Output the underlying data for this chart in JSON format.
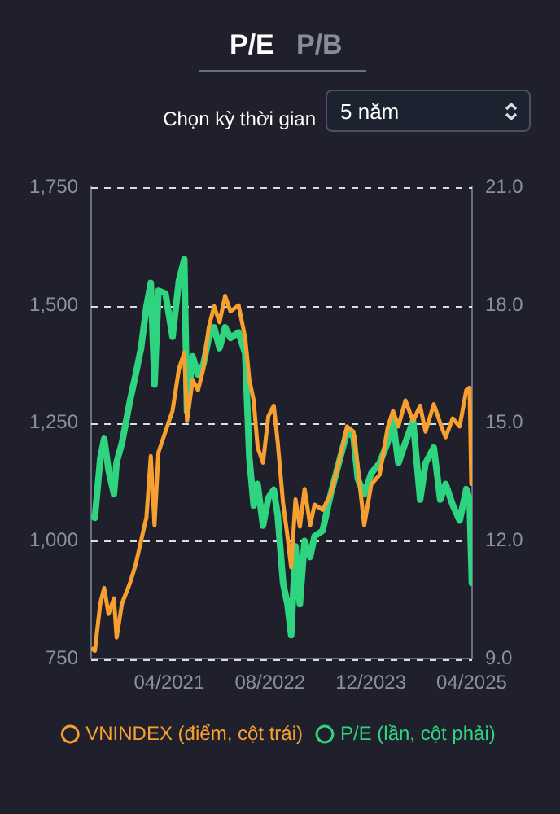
{
  "chart_data": {
    "type": "line",
    "annotations": [
      "P/E",
      "P/B",
      "Chọn kỳ thời gian",
      "5 năm"
    ],
    "x": [
      "2020-03-20",
      "2020-04-07",
      "2020-05-03",
      "2020-05-22",
      "2020-06-12",
      "2020-07-08",
      "2020-07-21",
      "2020-08-16",
      "2020-09-24",
      "2020-10-21",
      "2020-11-16",
      "2020-12-12",
      "2021-01-02",
      "2021-01-20",
      "2021-02-08",
      "2021-03-14",
      "2021-04-17",
      "2021-05-18",
      "2021-06-13",
      "2021-06-26",
      "2021-07-23",
      "2021-08-18",
      "2021-09-13",
      "2021-10-09",
      "2021-11-04",
      "2021-11-30",
      "2021-12-27",
      "2022-01-22",
      "2022-03-02",
      "2022-04-03",
      "2022-04-23",
      "2022-05-14",
      "2022-06-02",
      "2022-06-28",
      "2022-07-24",
      "2022-08-19",
      "2022-09-07",
      "2022-10-03",
      "2022-10-24",
      "2022-11-11",
      "2022-12-02",
      "2022-12-23",
      "2023-01-15",
      "2023-02-11",
      "2023-03-04",
      "2023-04-12",
      "2023-05-21",
      "2023-06-29",
      "2023-08-08",
      "2023-09-08",
      "2023-09-29",
      "2023-10-30",
      "2023-12-03",
      "2024-01-12",
      "2024-02-20",
      "2024-03-17",
      "2024-04-12",
      "2024-05-16",
      "2024-06-22",
      "2024-07-26",
      "2024-08-21",
      "2024-09-30",
      "2024-10-31",
      "2024-11-26",
      "2024-12-30",
      "2025-02-02",
      "2025-03-06",
      "2025-03-22",
      "2025-03-30",
      "2025-04-02"
    ],
    "series": [
      {
        "name": "VNINDEX (điểm, cột trái)",
        "color": "#f7a02f",
        "values": [
          772,
          767,
          867,
          900,
          845,
          878,
          795,
          867,
          911,
          950,
          1000,
          1050,
          1180,
          1033,
          1188,
          1232,
          1276,
          1365,
          1400,
          1254,
          1342,
          1320,
          1365,
          1453,
          1498,
          1464,
          1520,
          1487,
          1500,
          1431,
          1342,
          1298,
          1199,
          1166,
          1265,
          1287,
          1210,
          1080,
          1011,
          944,
          1088,
          1030,
          1110,
          1033,
          1077,
          1066,
          1099,
          1166,
          1243,
          1232,
          1155,
          1033,
          1120,
          1140,
          1240,
          1276,
          1243,
          1298,
          1254,
          1287,
          1232,
          1290,
          1250,
          1220,
          1260,
          1243,
          1320,
          1325,
          1121,
          1221
        ]
      },
      {
        "name": "P/E (lần, cột phải)",
        "color": "#2ed47f",
        "axis": "y2",
        "values": [
          12.65,
          12.59,
          14.1,
          14.6,
          13.8,
          13.19,
          14.0,
          14.5,
          15.58,
          16.24,
          16.91,
          17.97,
          18.57,
          15.98,
          18.37,
          18.3,
          17.2,
          18.63,
          19.17,
          15.31,
          16.7,
          16.24,
          16.5,
          17.17,
          17.44,
          16.91,
          17.44,
          17.17,
          17.31,
          16.77,
          14.12,
          12.9,
          13.45,
          12.39,
          13.1,
          13.3,
          12.65,
          10.93,
          10.39,
          9.6,
          11.86,
          10.39,
          12.0,
          11.59,
          12.12,
          12.26,
          13.19,
          13.98,
          14.78,
          14.65,
          13.58,
          13.19,
          13.72,
          13.98,
          14.51,
          15.05,
          13.98,
          14.51,
          15.05,
          13.05,
          13.98,
          14.38,
          13.05,
          13.45,
          12.92,
          12.52,
          13.32,
          13.05,
          11.5,
          10.93
        ]
      }
    ],
    "xlim": [
      "2020-03-20",
      "2025-04-03"
    ],
    "xticks": [
      {
        "value": "2021-04-01",
        "label": "04/2021"
      },
      {
        "value": "2022-08-01",
        "label": "08/2022"
      },
      {
        "value": "2023-12-01",
        "label": "12/2023"
      },
      {
        "value": "2025-04-01",
        "label": "04/2025"
      }
    ],
    "ylim": [
      750,
      1750
    ],
    "yticks": [
      {
        "value": 750,
        "label": "750"
      },
      {
        "value": 1000,
        "label": "1,000"
      },
      {
        "value": 1250,
        "label": "1,250"
      },
      {
        "value": 1500,
        "label": "1,500"
      },
      {
        "value": 1750,
        "label": "1,750"
      }
    ],
    "y2lim": [
      9,
      21
    ],
    "y2ticks": [
      {
        "value": 9,
        "label": "9.0"
      },
      {
        "value": 12,
        "label": "12.0"
      },
      {
        "value": 15,
        "label": "15.0"
      },
      {
        "value": 18,
        "label": "18.0"
      },
      {
        "value": 21,
        "label": "21.0"
      }
    ],
    "grid": "y",
    "legend": "bottom",
    "line_style": "solid"
  }
}
